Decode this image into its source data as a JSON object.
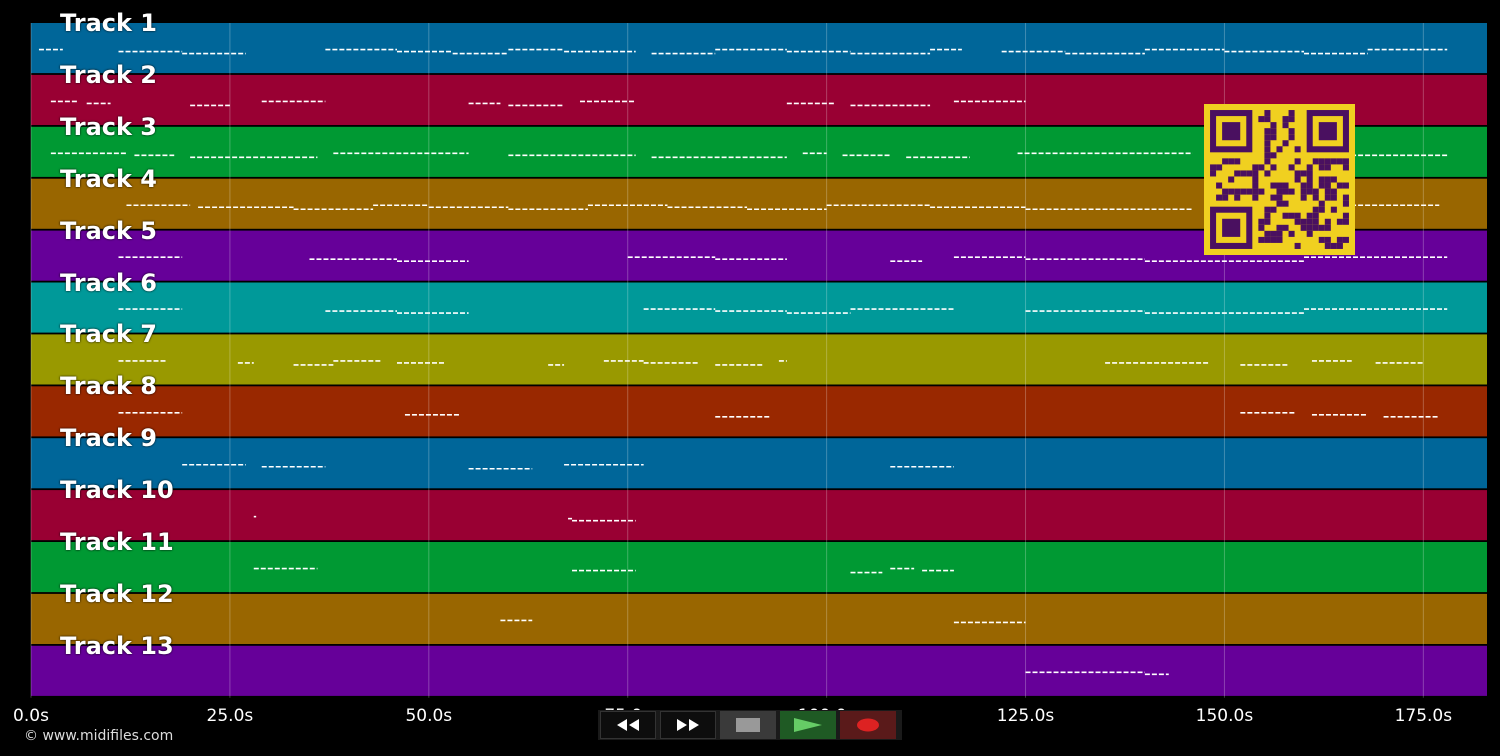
{
  "tracks": [
    {
      "label": "Track 1",
      "color": "#006699"
    },
    {
      "label": "Track 2",
      "color": "#990033"
    },
    {
      "label": "Track 3",
      "color": "#009933"
    },
    {
      "label": "Track 4",
      "color": "#996600"
    },
    {
      "label": "Track 5",
      "color": "#660099"
    },
    {
      "label": "Track 6",
      "color": "#009999"
    },
    {
      "label": "Track 7",
      "color": "#999900"
    },
    {
      "label": "Track 8",
      "color": "#992800"
    },
    {
      "label": "Track 9",
      "color": "#006699"
    },
    {
      "label": "Track 10",
      "color": "#990033"
    },
    {
      "label": "Track 11",
      "color": "#009933"
    },
    {
      "label": "Track 12",
      "color": "#996600"
    },
    {
      "label": "Track 13",
      "color": "#660099"
    }
  ],
  "timeline": {
    "ticks": [
      "0.0s",
      "25.0s",
      "50.0s",
      "75.0s",
      "100.0s",
      "125.0s",
      "150.0s",
      "175.0s"
    ],
    "tick_seconds": [
      0,
      25,
      50,
      75,
      100,
      125,
      150,
      175
    ],
    "max_seconds": 183
  },
  "notes": [
    {
      "track": 0,
      "segments": [
        [
          1,
          4
        ],
        [
          11,
          19
        ],
        [
          19,
          27
        ],
        [
          37,
          46
        ],
        [
          46,
          53
        ],
        [
          53,
          60
        ],
        [
          60,
          67
        ],
        [
          67,
          76
        ],
        [
          78,
          86
        ],
        [
          86,
          95
        ],
        [
          95,
          103
        ],
        [
          103,
          113
        ],
        [
          113,
          117
        ],
        [
          122,
          130
        ],
        [
          130,
          140
        ],
        [
          140,
          150
        ],
        [
          150,
          160
        ],
        [
          160,
          168
        ],
        [
          168,
          178
        ]
      ]
    },
    {
      "track": 1,
      "segments": [
        [
          2.5,
          6
        ],
        [
          7,
          10
        ],
        [
          20,
          25
        ],
        [
          29,
          37
        ],
        [
          55,
          59
        ],
        [
          60,
          67
        ],
        [
          69,
          76
        ],
        [
          95,
          101
        ],
        [
          103,
          113
        ],
        [
          116,
          125
        ]
      ]
    },
    {
      "track": 2,
      "segments": [
        [
          2.5,
          12
        ],
        [
          13,
          18
        ],
        [
          20,
          36
        ],
        [
          38,
          55
        ],
        [
          60,
          76
        ],
        [
          78,
          95
        ],
        [
          97,
          100
        ],
        [
          102,
          108
        ],
        [
          110,
          118
        ],
        [
          124,
          146
        ],
        [
          158,
          178
        ]
      ]
    },
    {
      "track": 3,
      "segments": [
        [
          12,
          20
        ],
        [
          21,
          33
        ],
        [
          33,
          43
        ],
        [
          43,
          50
        ],
        [
          50,
          60
        ],
        [
          60,
          70
        ],
        [
          70,
          80
        ],
        [
          80,
          90
        ],
        [
          90,
          100
        ],
        [
          100,
          113
        ],
        [
          113,
          125
        ],
        [
          125,
          146
        ],
        [
          158,
          177
        ]
      ]
    },
    {
      "track": 4,
      "segments": [
        [
          11,
          19
        ],
        [
          35,
          46
        ],
        [
          46,
          55
        ],
        [
          75,
          86
        ],
        [
          86,
          95
        ],
        [
          108,
          112
        ],
        [
          116,
          125
        ],
        [
          125,
          140
        ],
        [
          140,
          160
        ],
        [
          160,
          178
        ]
      ]
    },
    {
      "track": 5,
      "segments": [
        [
          11,
          19
        ],
        [
          37,
          46
        ],
        [
          46,
          55
        ],
        [
          77,
          86
        ],
        [
          86,
          95
        ],
        [
          95,
          103
        ],
        [
          103,
          116
        ],
        [
          125,
          140
        ],
        [
          140,
          160
        ],
        [
          160,
          178
        ]
      ]
    },
    {
      "track": 6,
      "segments": [
        [
          11,
          17
        ],
        [
          26,
          28
        ],
        [
          33,
          38
        ],
        [
          38,
          44
        ],
        [
          46,
          52
        ],
        [
          65,
          67
        ],
        [
          72,
          77
        ],
        [
          77,
          84
        ],
        [
          86,
          92
        ],
        [
          94,
          95
        ],
        [
          135,
          148
        ],
        [
          152,
          158
        ],
        [
          161,
          166
        ],
        [
          169,
          175
        ]
      ]
    },
    {
      "track": 7,
      "segments": [
        [
          11,
          19
        ],
        [
          47,
          54
        ],
        [
          86,
          93
        ],
        [
          152,
          159
        ],
        [
          161,
          168
        ],
        [
          170,
          177
        ]
      ]
    },
    {
      "track": 8,
      "segments": [
        [
          19,
          27
        ],
        [
          29,
          37
        ],
        [
          55,
          63
        ],
        [
          67,
          77
        ],
        [
          108,
          116
        ]
      ]
    },
    {
      "track": 9,
      "segments": [
        [
          28,
          28.3
        ],
        [
          67.5,
          68
        ],
        [
          68,
          76
        ]
      ]
    },
    {
      "track": 10,
      "segments": [
        [
          28,
          36
        ],
        [
          68,
          76
        ],
        [
          103,
          107
        ],
        [
          108,
          111
        ],
        [
          112,
          116
        ]
      ]
    },
    {
      "track": 11,
      "segments": [
        [
          59,
          63
        ],
        [
          116,
          125
        ]
      ]
    },
    {
      "track": 12,
      "segments": [
        [
          125,
          140
        ],
        [
          140,
          143
        ]
      ]
    }
  ],
  "transport": {
    "rewind_icon": "rewind-icon",
    "ffwd_icon": "fast-forward-icon",
    "stop_icon": "stop-icon",
    "play_icon": "play-icon",
    "record_icon": "record-icon",
    "play_color": "#66cc66",
    "record_color": "#dd2222"
  },
  "copyright": "© www.midifiles.com",
  "qr_colors": {
    "fg": "#4a1060",
    "bg": "#f0d020"
  }
}
